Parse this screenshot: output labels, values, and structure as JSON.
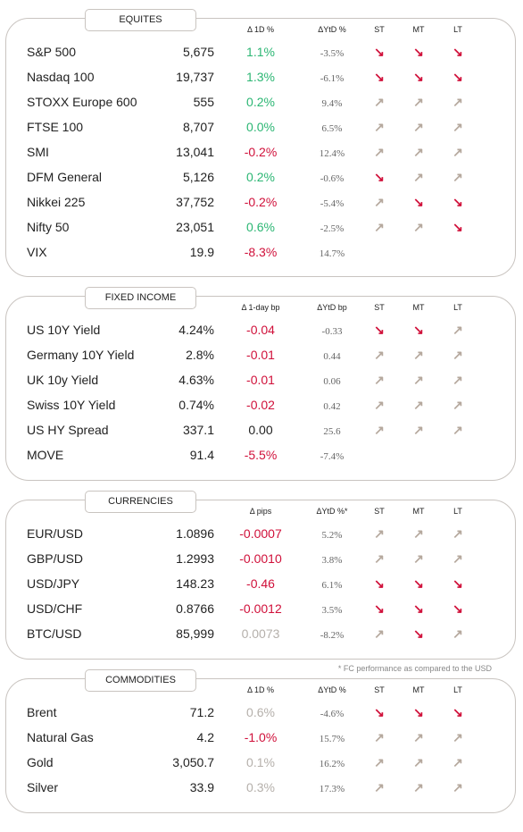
{
  "sections": [
    {
      "title": "EQUITES",
      "headers": [
        "Δ 1D %",
        "ΔYtD %",
        "ST",
        "MT",
        "LT"
      ],
      "rows": [
        {
          "name": "S&P 500",
          "value": "5,675",
          "change": "1.1%",
          "change_color": "#2bb673",
          "ytd": "-3.5%",
          "arrows": [
            "↘",
            "↘",
            "↘"
          ]
        },
        {
          "name": "Nasdaq 100",
          "value": "19,737",
          "change": "1.3%",
          "change_color": "#2bb673",
          "ytd": "-6.1%",
          "arrows": [
            "↘",
            "↘",
            "↘"
          ]
        },
        {
          "name": "STOXX Europe 600",
          "value": "555",
          "change": "0.2%",
          "change_color": "#2bb673",
          "ytd": "9.4%",
          "arrows": [
            "↗",
            "↗",
            "↗"
          ]
        },
        {
          "name": "FTSE 100",
          "value": "8,707",
          "change": "0.0%",
          "change_color": "#2bb673",
          "ytd": "6.5%",
          "arrows": [
            "↗",
            "↗",
            "↗"
          ]
        },
        {
          "name": "SMI",
          "value": "13,041",
          "change": "-0.2%",
          "change_color": "#d0103a",
          "ytd": "12.4%",
          "arrows": [
            "↗",
            "↗",
            "↗"
          ]
        },
        {
          "name": "DFM General",
          "value": "5,126",
          "change": "0.2%",
          "change_color": "#2bb673",
          "ytd": "-0.6%",
          "arrows": [
            "↘",
            "↗",
            "↗"
          ]
        },
        {
          "name": "Nikkei 225",
          "value": "37,752",
          "change": "-0.2%",
          "change_color": "#d0103a",
          "ytd": "-5.4%",
          "arrows": [
            "↗",
            "↘",
            "↘"
          ]
        },
        {
          "name": "Nifty  50",
          "value": "23,051",
          "change": "0.6%",
          "change_color": "#2bb673",
          "ytd": "-2.5%",
          "arrows": [
            "↗",
            "↗",
            "↘"
          ]
        },
        {
          "name": "VIX",
          "value": "19.9",
          "change": "-8.3%",
          "change_color": "#d0103a",
          "ytd": "14.7%",
          "arrows": []
        }
      ]
    },
    {
      "title": "FIXED INCOME",
      "headers": [
        "Δ 1-day bp",
        "ΔYtD bp",
        "ST",
        "MT",
        "LT"
      ],
      "rows": [
        {
          "name": "US 10Y Yield",
          "value": "4.24%",
          "change": "-0.04",
          "change_color": "#d0103a",
          "ytd": "-0.33",
          "arrows": [
            "↘",
            "↘",
            "↗"
          ]
        },
        {
          "name": "Germany 10Y Yield",
          "value": "2.8%",
          "change": "-0.01",
          "change_color": "#d0103a",
          "ytd": "0.44",
          "arrows": [
            "↗",
            "↗",
            "↗"
          ]
        },
        {
          "name": "UK 10y Yield",
          "value": "4.63%",
          "change": "-0.01",
          "change_color": "#d0103a",
          "ytd": "0.06",
          "arrows": [
            "↗",
            "↗",
            "↗"
          ]
        },
        {
          "name": "Swiss 10Y Yield",
          "value": "0.74%",
          "change": "-0.02",
          "change_color": "#d0103a",
          "ytd": "0.42",
          "arrows": [
            "↗",
            "↗",
            "↗"
          ]
        },
        {
          "name": "US HY Spread",
          "value": "337.1",
          "change": "0.00",
          "change_color": "#222222",
          "ytd": "25.6",
          "arrows": [
            "↗",
            "↗",
            "↗"
          ]
        },
        {
          "name": "MOVE",
          "value": "91.4",
          "change": "-5.5%",
          "change_color": "#d0103a",
          "ytd": "-7.4%",
          "arrows": []
        }
      ]
    },
    {
      "title": "CURRENCIES",
      "headers": [
        "Δ pips",
        "ΔYtD %*",
        "ST",
        "MT",
        "LT"
      ],
      "rows": [
        {
          "name": "EUR/USD",
          "value": "1.0896",
          "change": "-0.0007",
          "change_color": "#d0103a",
          "ytd": "5.2%",
          "arrows": [
            "↗",
            "↗",
            "↗"
          ]
        },
        {
          "name": "GBP/USD",
          "value": "1.2993",
          "change": "-0.0010",
          "change_color": "#d0103a",
          "ytd": "3.8%",
          "arrows": [
            "↗",
            "↗",
            "↗"
          ]
        },
        {
          "name": "USD/JPY",
          "value": "148.23",
          "change": "-0.46",
          "change_color": "#d0103a",
          "ytd": "6.1%",
          "arrows": [
            "↘",
            "↘",
            "↘"
          ]
        },
        {
          "name": "USD/CHF",
          "value": "0.8766",
          "change": "-0.0012",
          "change_color": "#d0103a",
          "ytd": "3.5%",
          "arrows": [
            "↘",
            "↘",
            "↘"
          ]
        },
        {
          "name": "BTC/USD",
          "value": "85,999",
          "change": "0.0073",
          "change_color": "#b5b0ab",
          "ytd": "-8.2%",
          "arrows": [
            "↗",
            "↘",
            "↗"
          ]
        }
      ]
    },
    {
      "title": "COMMODITIES",
      "headers": [
        "Δ 1D %",
        "ΔYtD %",
        "ST",
        "MT",
        "LT"
      ],
      "rows": [
        {
          "name": "Brent",
          "value": "71.2",
          "change": "0.6%",
          "change_color": "#b5b0ab",
          "ytd": "-4.6%",
          "arrows": [
            "↘",
            "↘",
            "↘"
          ]
        },
        {
          "name": "Natural Gas",
          "value": "4.2",
          "change": "-1.0%",
          "change_color": "#d0103a",
          "ytd": "15.7%",
          "arrows": [
            "↗",
            "↗",
            "↗"
          ]
        },
        {
          "name": "Gold",
          "value": "3,050.7",
          "change": "0.1%",
          "change_color": "#b5b0ab",
          "ytd": "16.2%",
          "arrows": [
            "↗",
            "↗",
            "↗"
          ]
        },
        {
          "name": "Silver",
          "value": "33.9",
          "change": "0.3%",
          "change_color": "#b5b0ab",
          "ytd": "17.3%",
          "arrows": [
            "↗",
            "↗",
            "↗"
          ]
        }
      ]
    }
  ],
  "footnote": "* FC performance as compared to the USD"
}
